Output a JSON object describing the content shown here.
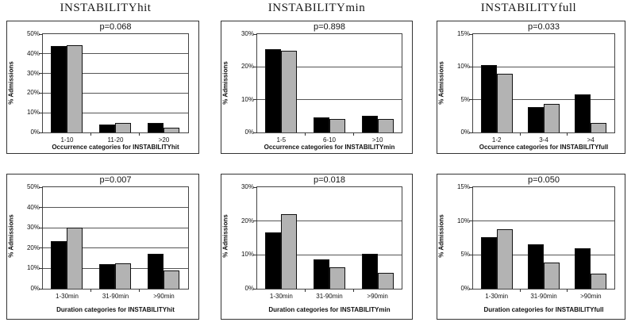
{
  "figure_titles": [
    "INSTABILITYhit",
    "INSTABILITYmin",
    "INSTABILITYfull"
  ],
  "colors": {
    "series_black": "#000000",
    "series_gray": "#b3b3b3",
    "grid": "#555555"
  },
  "chart_data": [
    {
      "type": "bar",
      "p_label": "p=0.068",
      "title": "INSTABILITYhit",
      "categories": [
        "1-10",
        "11-20",
        ">20"
      ],
      "series": [
        {
          "name": "black",
          "color": "#000000",
          "values": [
            44,
            3.9,
            5
          ]
        },
        {
          "name": "gray",
          "color": "#b3b3b3",
          "values": [
            44.5,
            4.7,
            2.3
          ]
        }
      ],
      "xlabel": "Occurrence categories for INSTABILITYhit",
      "ylabel": "% Admissions",
      "y_max": 50,
      "y_step": 10,
      "y_ticks": [
        "0%",
        "10%",
        "20%",
        "30%",
        "40%",
        "50%"
      ],
      "grid": "horizontal",
      "legend": "none"
    },
    {
      "type": "bar",
      "p_label": "p=0.898",
      "title": "INSTABILITYmin",
      "categories": [
        "1-5",
        "6-10",
        ">10"
      ],
      "series": [
        {
          "name": "black",
          "color": "#000000",
          "values": [
            25.5,
            4.5,
            5
          ]
        },
        {
          "name": "gray",
          "color": "#b3b3b3",
          "values": [
            25,
            4.2,
            4
          ]
        }
      ],
      "xlabel": "Occurrence categories for INSTABILITYmin",
      "ylabel": "% Admissions",
      "y_max": 30,
      "y_step": 10,
      "y_ticks": [
        "0%",
        "10%",
        "20%",
        "30%"
      ],
      "grid": "horizontal",
      "legend": "none"
    },
    {
      "type": "bar",
      "p_label": "p=0.033",
      "title": "INSTABILITYfull",
      "categories": [
        "1-2",
        "3-4",
        ">4"
      ],
      "series": [
        {
          "name": "black",
          "color": "#000000",
          "values": [
            10.3,
            3.9,
            5.8
          ]
        },
        {
          "name": "gray",
          "color": "#b3b3b3",
          "values": [
            8.9,
            4.3,
            1.4
          ]
        }
      ],
      "xlabel": "Occurrence categories for INSTABILITYfull",
      "ylabel": "% Admissions",
      "y_max": 15,
      "y_step": 5,
      "y_ticks": [
        "0%",
        "5%",
        "10%",
        "15%"
      ],
      "grid": "horizontal",
      "legend": "none"
    },
    {
      "type": "bar",
      "p_label": "p=0.007",
      "title": "INSTABILITYhit",
      "categories": [
        "1-30min",
        "31-90min",
        ">90min"
      ],
      "series": [
        {
          "name": "black",
          "color": "#000000",
          "values": [
            23.5,
            12.3,
            17.3
          ]
        },
        {
          "name": "gray",
          "color": "#b3b3b3",
          "values": [
            30,
            12.7,
            8.8
          ]
        }
      ],
      "xlabel": "Duration categories for INSTABILITYhit",
      "ylabel": "% Admissions",
      "y_max": 50,
      "y_step": 10,
      "y_ticks": [
        "0%",
        "10%",
        "20%",
        "30%",
        "40%",
        "50%"
      ],
      "grid": "horizontal",
      "legend": "none"
    },
    {
      "type": "bar",
      "p_label": "p=0.018",
      "title": "INSTABILITYmin",
      "categories": [
        "1-30min",
        "31-90min",
        ">90min"
      ],
      "series": [
        {
          "name": "black",
          "color": "#000000",
          "values": [
            16.6,
            8.7,
            10.3
          ]
        },
        {
          "name": "gray",
          "color": "#b3b3b3",
          "values": [
            22,
            6.3,
            4.7
          ]
        }
      ],
      "xlabel": "Duration categories for INSTABILITYmin",
      "ylabel": "% Admissions",
      "y_max": 30,
      "y_step": 10,
      "y_ticks": [
        "0%",
        "10%",
        "20%",
        "30%"
      ],
      "grid": "horizontal",
      "legend": "none"
    },
    {
      "type": "bar",
      "p_label": "p=0.050",
      "title": "INSTABILITYfull",
      "categories": [
        "1-30min",
        "31-90min",
        ">90min"
      ],
      "series": [
        {
          "name": "black",
          "color": "#000000",
          "values": [
            7.6,
            6.6,
            6
          ]
        },
        {
          "name": "gray",
          "color": "#b3b3b3",
          "values": [
            8.8,
            3.9,
            2.2
          ]
        }
      ],
      "xlabel": "Duration categories for INSTABILITYfull",
      "ylabel": "% Admissions",
      "y_max": 15,
      "y_step": 5,
      "y_ticks": [
        "0%",
        "5%",
        "10%",
        "15%"
      ],
      "grid": "horizontal",
      "legend": "none"
    }
  ]
}
